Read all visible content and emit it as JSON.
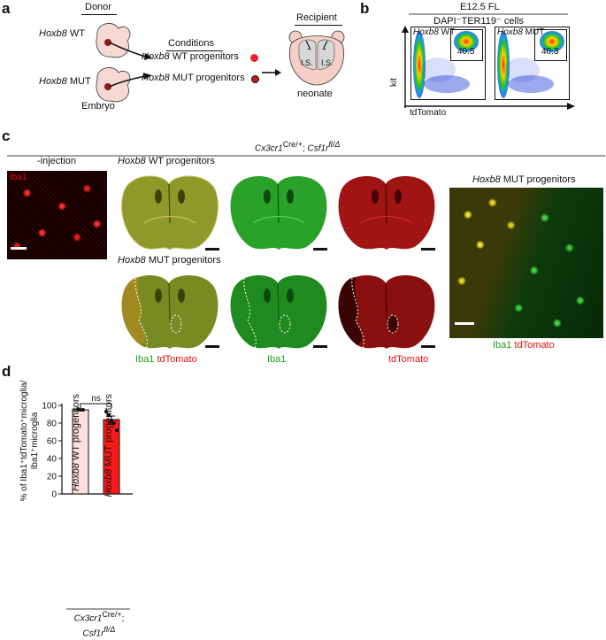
{
  "panel_a": {
    "letter": "a",
    "donor_label": "Donor",
    "wt_italic": "Hoxb8",
    "wt_suffix": " WT",
    "mut_italic": "Hoxb8",
    "mut_suffix": " MUT",
    "embryo_label": "Embryo",
    "conditions_label": "Conditions",
    "wt_prog_italic": "Hoxb8",
    "wt_prog_suffix": " WT progenitors",
    "mut_prog_italic": "Hoxb8",
    "mut_prog_suffix": " MUT progenitors",
    "recipient_label": "Recipient",
    "is_left": "I.S.",
    "is_right": "I.S.",
    "neonate_label": "neonate",
    "wt_dot_color": "#e8262c",
    "mut_dot_color": "#c41a1a"
  },
  "panel_b": {
    "letter": "b",
    "title": "E12.5 FL",
    "subtitle": "DAPI⁻TER119⁻ cells",
    "ylabel": "kit",
    "xlabel": "tdTomato",
    "plot_wt_italic": "Hoxb8",
    "plot_wt_suffix": " WT",
    "plot_wt_value": "40.5",
    "plot_mut_italic": "Hoxb8",
    "plot_mut_suffix": " MUT",
    "plot_mut_value": "40.3"
  },
  "panel_c": {
    "letter": "c",
    "header_italic": "Cx3cr1",
    "header_sup1": "Cre/+",
    "header_mid": "; ",
    "header_italic2": "Csf1r",
    "header_sup2": "fl/Δ",
    "injection_label": "-injection",
    "iba1_overlay": "Iba1",
    "wt_row_italic": "Hoxb8",
    "wt_row_suffix": " WT progenitors",
    "mut_row_italic": "Hoxb8",
    "mut_row_suffix": " MUT progenitors",
    "zoom_italic": "Hoxb8",
    "zoom_suffix": " MUT progenitors",
    "bottom_iba1_merge": "Iba1",
    "bottom_td_merge": "tdTomato",
    "bottom_iba1": "Iba1",
    "bottom_td": "tdTomato",
    "zoom_iba1": "Iba1",
    "zoom_td": "tdTomato"
  },
  "panel_d": {
    "letter": "d",
    "ylabel_line1": "% of Iba1⁺tdTomato⁺microglia/",
    "ylabel_line2": "Iba1⁺microglia",
    "sig_label": "ns",
    "genotype_italic": "Cx3cr1",
    "genotype_sup1": "Cre/+",
    "genotype_mid": ";",
    "genotype_italic2": "Csf1r",
    "genotype_sup2": "fl/Δ"
  },
  "chart_data": {
    "type": "bar",
    "categories": [
      "Hoxb8 WT progenitors",
      "Hoxb8 MUT progenitors"
    ],
    "values": [
      95,
      84
    ],
    "errors": [
      0.8,
      4
    ],
    "points": [
      [
        96,
        95,
        95
      ],
      [
        93,
        89,
        83,
        80,
        72
      ]
    ],
    "bar_colors": [
      "#fde0dc",
      "#ff1a1a"
    ],
    "ylim": [
      0,
      100
    ],
    "yticks": [
      0,
      20,
      40,
      60,
      80,
      100
    ],
    "ylabel": "% of Iba1⁺tdTomato⁺microglia/ Iba1⁺microglia",
    "annotation": "ns"
  }
}
